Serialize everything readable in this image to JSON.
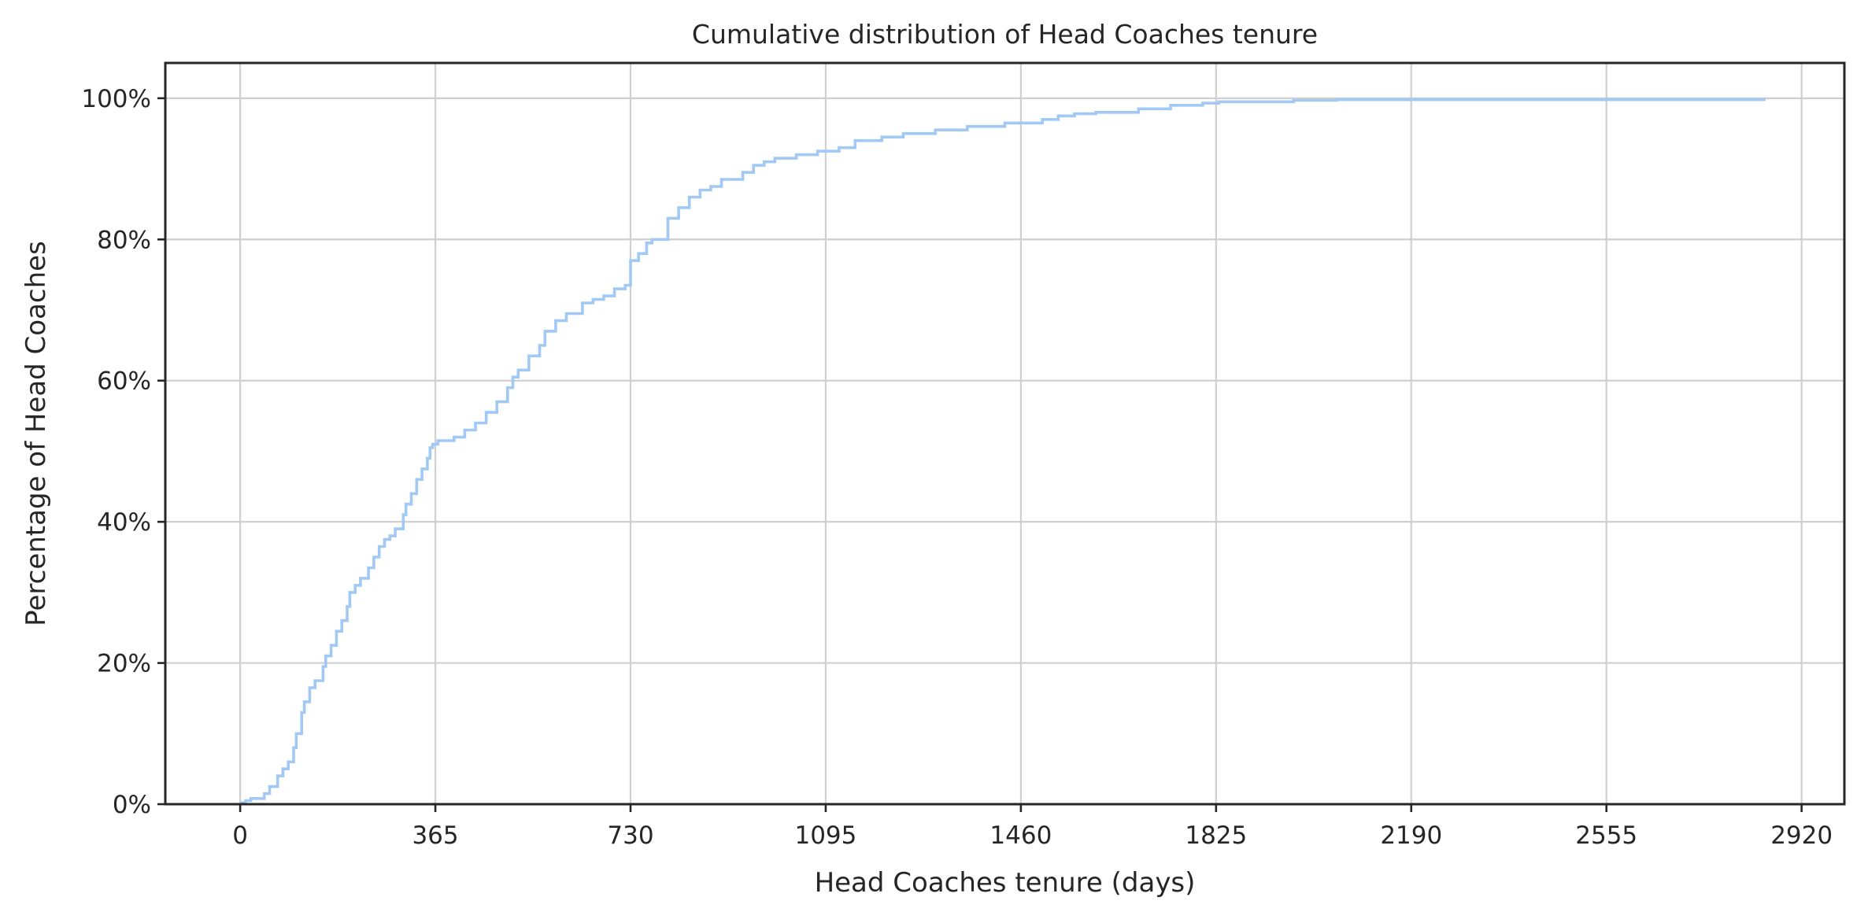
{
  "chart_data": {
    "type": "line",
    "title": "Cumulative distribution of Head Coaches tenure",
    "xlabel": "Head Coaches tenure (days)",
    "ylabel": "Percentage of Head Coaches",
    "xlim": [
      -140,
      3000
    ],
    "ylim": [
      0,
      1.05
    ],
    "x_ticks": [
      0,
      365,
      730,
      1095,
      1460,
      1825,
      2190,
      2555,
      2920
    ],
    "x_tick_labels": [
      "0",
      "365",
      "730",
      "1095",
      "1460",
      "1825",
      "2190",
      "2555",
      "2920"
    ],
    "y_ticks": [
      0,
      0.2,
      0.4,
      0.6,
      0.8,
      1.0
    ],
    "y_tick_labels": [
      "0%",
      "20%",
      "40%",
      "60%",
      "80%",
      "100%"
    ],
    "grid": true,
    "step": true,
    "line_color": "#a1c9f4",
    "series": [
      {
        "x": [
          0,
          10,
          20,
          45,
          55,
          70,
          80,
          90,
          100,
          105,
          115,
          120,
          130,
          140,
          155,
          160,
          170,
          180,
          190,
          200,
          205,
          215,
          225,
          240,
          250,
          260,
          270,
          280,
          290,
          305,
          310,
          320,
          330,
          340,
          350,
          355,
          360,
          370,
          400,
          420,
          440,
          460,
          480,
          500,
          510,
          520,
          540,
          560,
          570,
          590,
          610,
          640,
          660,
          680,
          700,
          720,
          730,
          745,
          760,
          770,
          800,
          820,
          840,
          860,
          880,
          900,
          940,
          960,
          980,
          1000,
          1040,
          1080,
          1120,
          1150,
          1200,
          1240,
          1300,
          1360,
          1430,
          1500,
          1530,
          1560,
          1600,
          1680,
          1740,
          1800,
          1830,
          1970,
          2050,
          2850
        ],
        "y": [
          0.002,
          0.005,
          0.008,
          0.015,
          0.025,
          0.04,
          0.05,
          0.06,
          0.08,
          0.1,
          0.13,
          0.145,
          0.165,
          0.175,
          0.195,
          0.21,
          0.225,
          0.245,
          0.26,
          0.28,
          0.3,
          0.31,
          0.32,
          0.335,
          0.35,
          0.365,
          0.375,
          0.38,
          0.39,
          0.41,
          0.425,
          0.44,
          0.46,
          0.475,
          0.49,
          0.505,
          0.51,
          0.515,
          0.52,
          0.53,
          0.54,
          0.555,
          0.57,
          0.59,
          0.605,
          0.615,
          0.635,
          0.65,
          0.67,
          0.685,
          0.695,
          0.71,
          0.715,
          0.72,
          0.73,
          0.735,
          0.77,
          0.78,
          0.795,
          0.8,
          0.83,
          0.845,
          0.86,
          0.87,
          0.875,
          0.885,
          0.895,
          0.905,
          0.91,
          0.915,
          0.92,
          0.925,
          0.93,
          0.94,
          0.945,
          0.95,
          0.955,
          0.96,
          0.965,
          0.97,
          0.975,
          0.978,
          0.98,
          0.985,
          0.99,
          0.993,
          0.995,
          0.997,
          0.998,
          1.0
        ]
      }
    ]
  }
}
